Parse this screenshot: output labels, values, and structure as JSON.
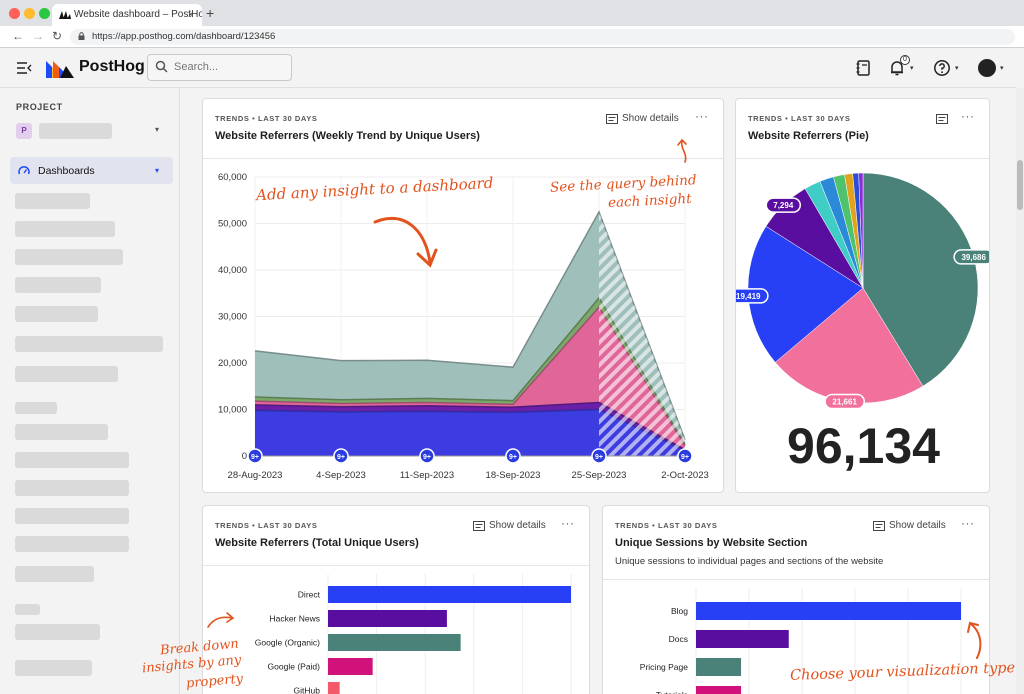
{
  "browser": {
    "tab_title": "Website dashboard – PostHog",
    "tab_close": "×",
    "new_tab": "+",
    "url": "https://app.posthog.com/dashboard/123456",
    "back": "←",
    "forward": "→",
    "reload": "↻"
  },
  "header": {
    "brand": "PostHog",
    "search_placeholder": "Search...",
    "notifications_count": "0",
    "caret": "▾"
  },
  "sidebar": {
    "project_label": "PROJECT",
    "project_initial": "P",
    "active_item": "Dashboards"
  },
  "cards": {
    "trend": {
      "meta": "TRENDS • LAST 30 DAYS",
      "title": "Website Referrers (Weekly Trend by Unique Users)",
      "details": "Show details",
      "more": "···"
    },
    "pie": {
      "meta": "TRENDS • LAST 30 DAYS",
      "title": "Website Referrers (Pie)",
      "more": "···",
      "total": "96,134"
    },
    "bars": {
      "meta": "TRENDS • LAST 30 DAYS",
      "title": "Website Referrers (Total Unique Users)",
      "details": "Show details",
      "more": "···"
    },
    "sessions": {
      "meta": "TRENDS • LAST 30 DAYS",
      "title": "Unique Sessions by Website Section",
      "subtitle": "Unique sessions to individual pages and sections of the website",
      "details": "Show details",
      "more": "···"
    }
  },
  "annotations": {
    "add_insight": "Add any insight to a dashboard",
    "query_1": "See the query behind",
    "query_2": "each insight",
    "breakdown_1": "Break down",
    "breakdown_2": "insights by any",
    "breakdown_3": "property",
    "visualization": "Choose your visualization type"
  },
  "chart_data": [
    {
      "type": "area",
      "title": "Website Referrers (Weekly Trend by Unique Users)",
      "categories": [
        "28-Aug-2023",
        "4-Sep-2023",
        "11-Sep-2023",
        "18-Sep-2023",
        "25-Sep-2023",
        "2-Oct-2023"
      ],
      "y_ticks": [
        "0",
        "10,000",
        "20,000",
        "30,000",
        "40,000",
        "50,000",
        "60,000"
      ],
      "ylim": [
        0,
        60000
      ],
      "grid": true,
      "point_badge": "9+",
      "incomplete_from_index": 4,
      "series": [
        {
          "values": [
            9800,
            9500,
            9600,
            9400,
            10000,
            1200
          ],
          "color": "#3d3ce0"
        },
        {
          "values": [
            1200,
            1100,
            1200,
            1100,
            1500,
            200
          ],
          "color": "#6a1fa8"
        },
        {
          "values": [
            800,
            700,
            700,
            600,
            20500,
            800
          ],
          "color": "#e0669a"
        },
        {
          "values": [
            900,
            800,
            900,
            800,
            2000,
            300
          ],
          "color": "#7aa86a"
        },
        {
          "values": [
            9900,
            8400,
            8200,
            7200,
            18500,
            1000
          ],
          "color": "#9fbfbb"
        }
      ]
    },
    {
      "type": "pie",
      "title": "Website Referrers (Pie)",
      "values": [
        39686,
        21661,
        19419,
        7294,
        2200,
        1900,
        1500,
        1100,
        800,
        574
      ],
      "colors": [
        "#4a8179",
        "#f2709c",
        "#2740f5",
        "#5a0ea0",
        "#3fcdc6",
        "#2b8ad8",
        "#4ec26c",
        "#e3a21b",
        "#2a4fd6",
        "#8a2ad9"
      ],
      "labels": [
        "39,686",
        "21,661",
        "19,419",
        "7,294",
        "",
        "",
        "",
        "",
        "",
        ""
      ]
    },
    {
      "type": "bar",
      "orientation": "horizontal",
      "title": "Website Referrers (Total Unique Users)",
      "categories": [
        "Direct",
        "Hacker News",
        "Google (Organic)",
        "Google (Paid)",
        "GitHub"
      ],
      "values": [
        39686,
        19419,
        21661,
        7294,
        1900
      ],
      "colors": [
        "#2740f5",
        "#5a0ea0",
        "#4a8179",
        "#d0127a",
        "#f25a6a"
      ]
    },
    {
      "type": "bar",
      "orientation": "horizontal",
      "title": "Unique Sessions by Website Section",
      "categories": [
        "Blog",
        "Docs",
        "Pricing Page",
        "Tutorials"
      ],
      "values": [
        100,
        35,
        17,
        17
      ],
      "colors": [
        "#2740f5",
        "#5a0ea0",
        "#4a8179",
        "#d0127a"
      ]
    }
  ]
}
